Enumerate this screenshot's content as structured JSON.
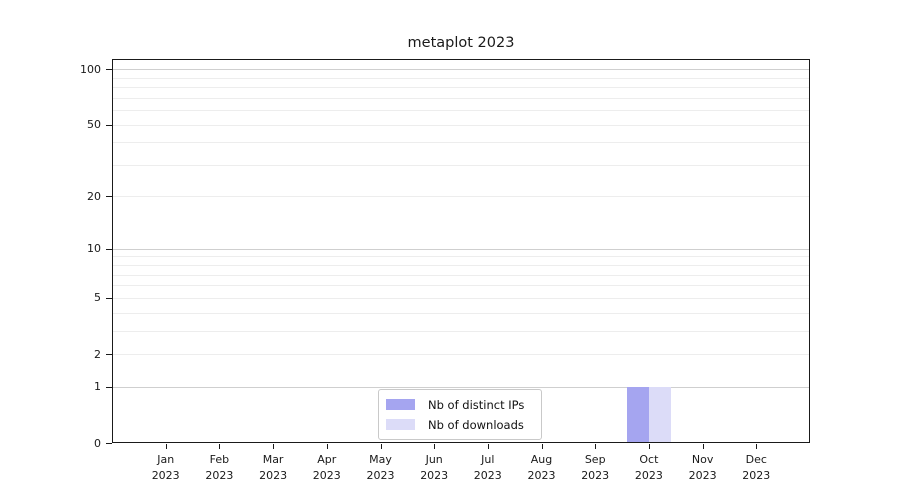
{
  "chart_data": {
    "type": "bar",
    "title": "metaplot 2023",
    "x": {
      "categories": [
        "Jan",
        "Feb",
        "Mar",
        "Apr",
        "May",
        "Jun",
        "Jul",
        "Aug",
        "Sep",
        "Oct",
        "Nov",
        "Dec"
      ],
      "year_label": "2023"
    },
    "y_axis": {
      "scale": "log1p",
      "tick_values": [
        100,
        50,
        20,
        10,
        5,
        2,
        1,
        0
      ],
      "minor_grid_values": [
        2,
        3,
        4,
        5,
        6,
        7,
        8,
        9,
        20,
        30,
        40,
        50,
        60,
        70,
        80,
        90
      ],
      "major_grid_values": [
        1,
        10,
        100
      ],
      "ylim": [
        0,
        113
      ]
    },
    "series": [
      {
        "name": "Nb of distinct IPs",
        "color": "#a5a5f0",
        "values": [
          0,
          0,
          0,
          0,
          0,
          0,
          0,
          0,
          0,
          1,
          0,
          0
        ]
      },
      {
        "name": "Nb of downloads",
        "color": "#dcdcf8",
        "values": [
          0,
          0,
          0,
          0,
          0,
          0,
          0,
          0,
          0,
          1,
          0,
          0
        ]
      }
    ],
    "legend": {
      "items": [
        "Nb of distinct IPs",
        "Nb of downloads"
      ],
      "position": "lower-center"
    },
    "grid": "horizontal"
  },
  "colors": {
    "background": "#ffffff",
    "spine": "#1a1a1a",
    "tick": "#1a1a1a",
    "text": "#1a1a1a",
    "grid_minor": "#ededed",
    "grid_major": "#cfcfcf",
    "legend_border": "#c9c9c9",
    "legend_background": "#ffffff"
  }
}
